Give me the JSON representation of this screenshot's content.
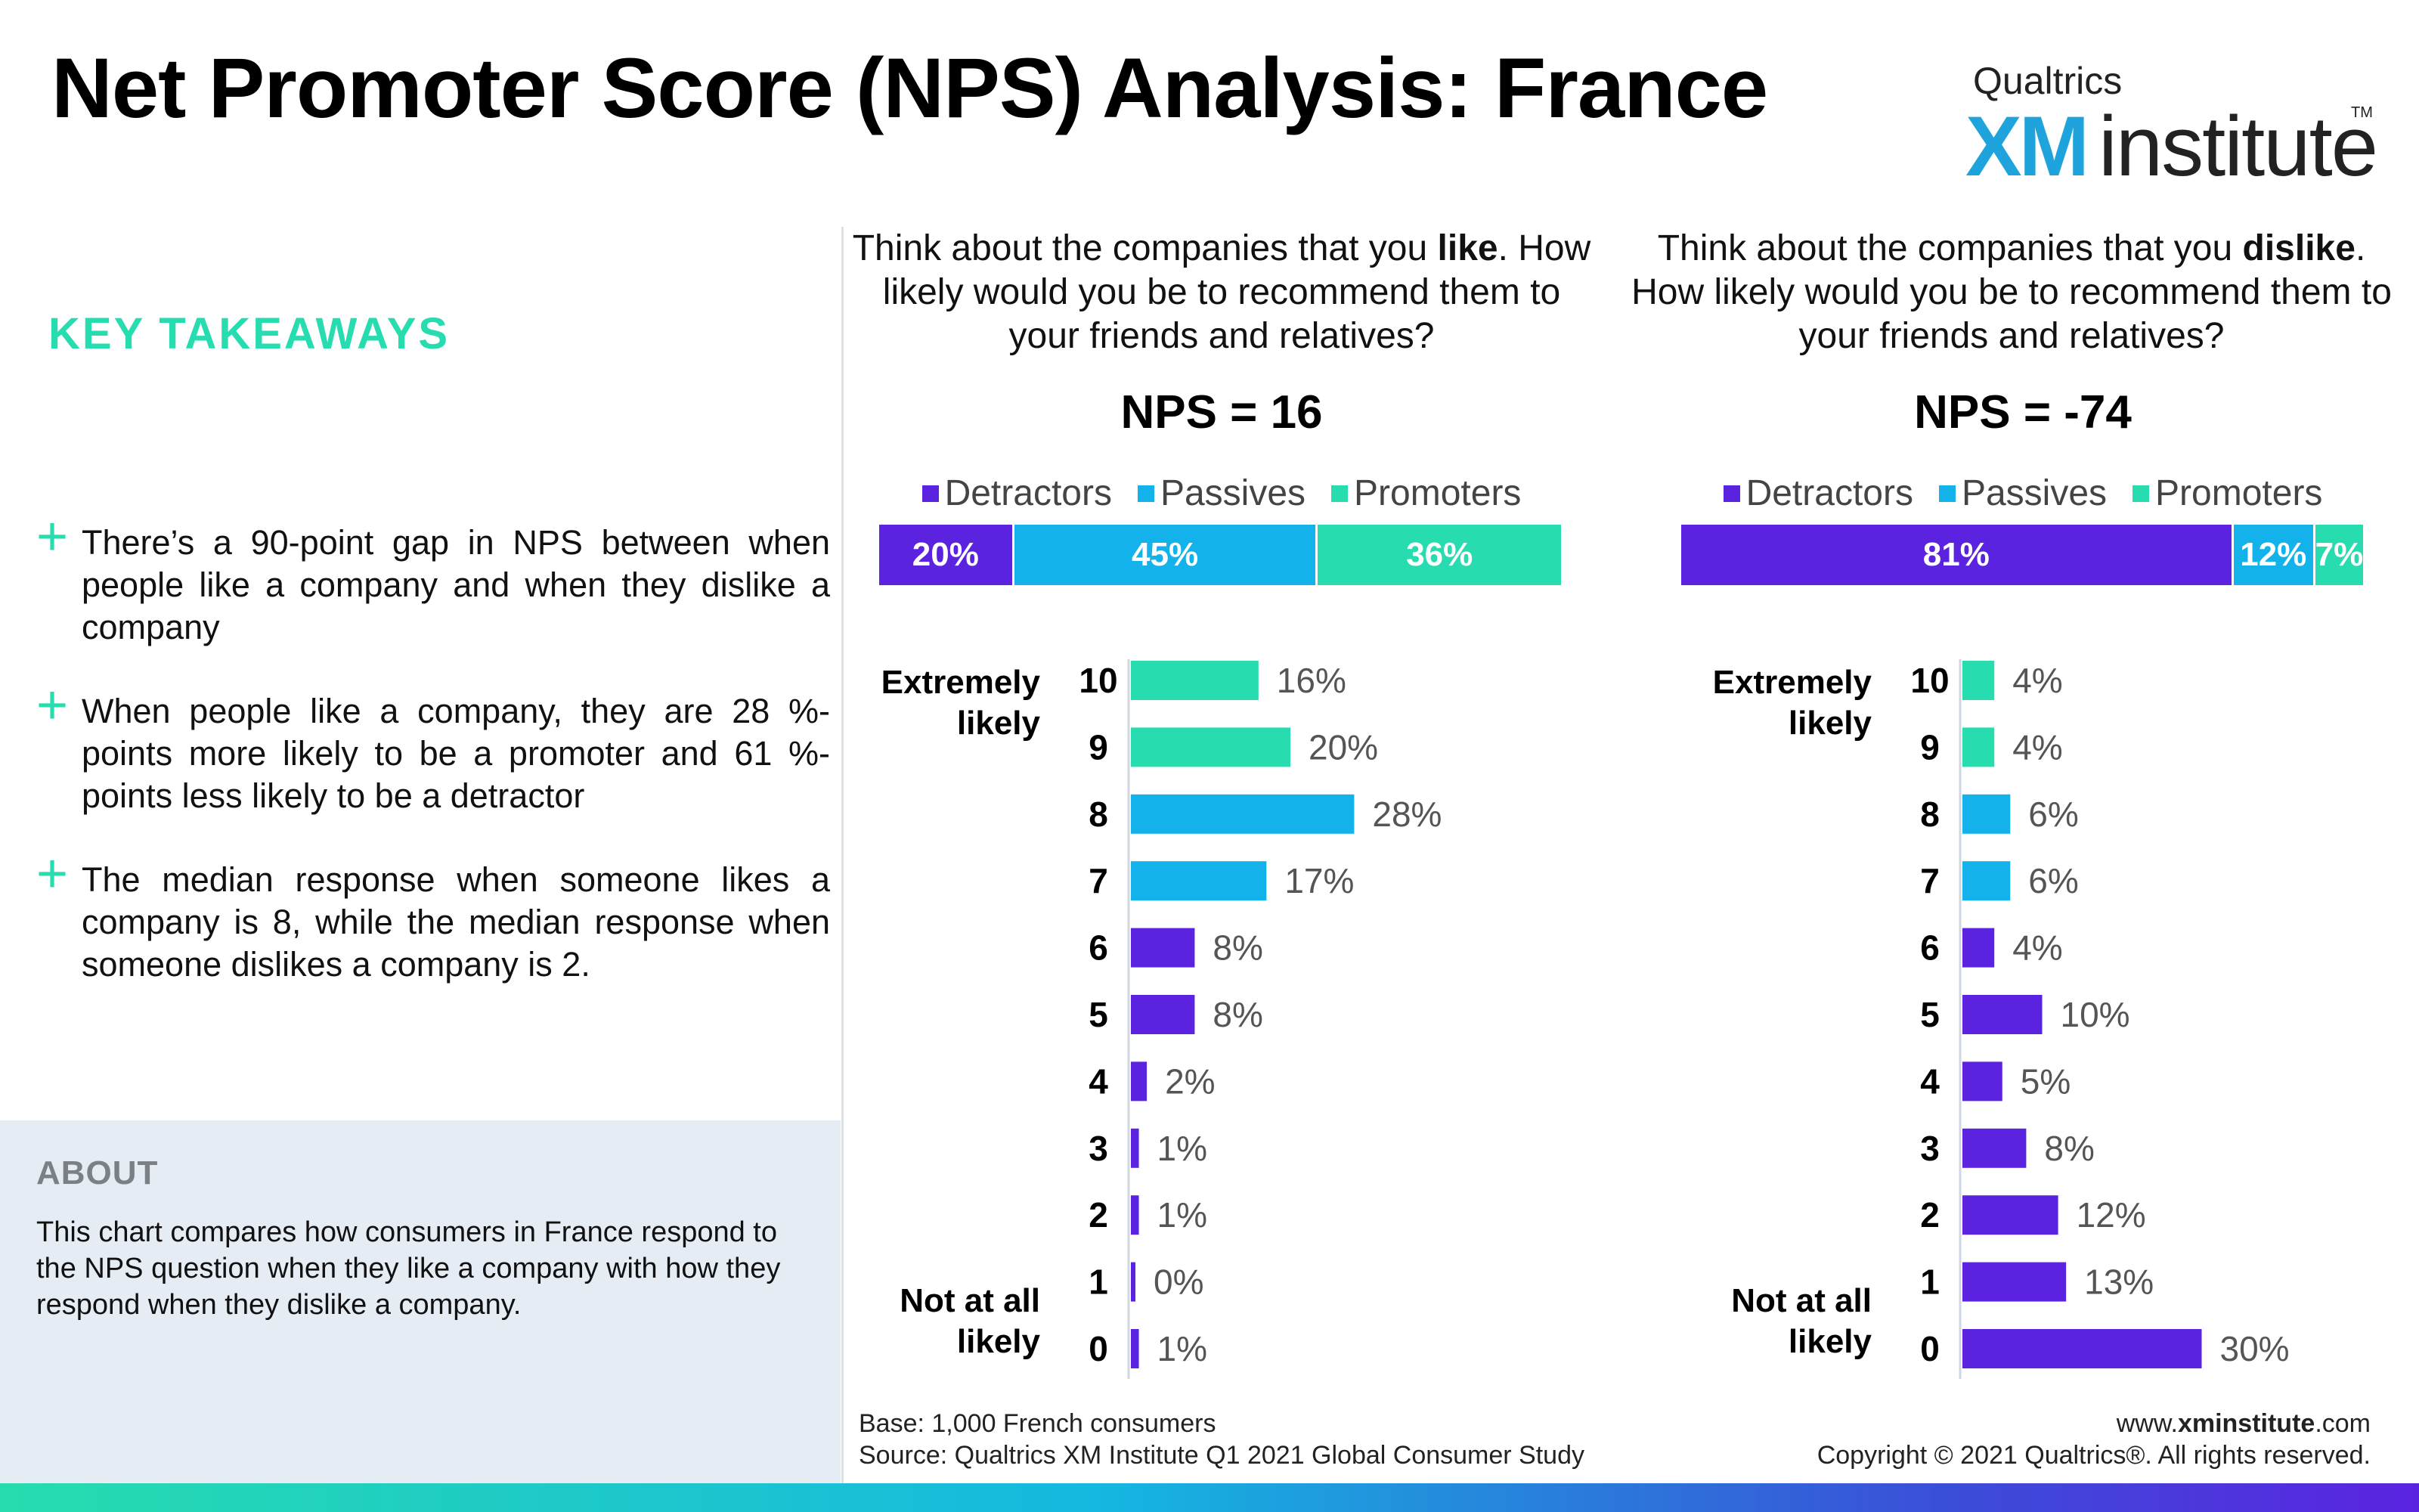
{
  "title": "Net Promoter Score (NPS) Analysis: France",
  "logo": {
    "top": "Qualtrics",
    "xm": "XM",
    "institute": "institute",
    "tm": "TM"
  },
  "takeaways": {
    "title": "KEY TAKEAWAYS",
    "items": [
      "There’s a 90-point gap in NPS between when people like a company and when they dislike a company",
      "When people like a company, they are 28 %-points more likely to be a promoter and 61 %-points less likely to be a detractor",
      "The median response when someone likes a company is 8, while the median response when someone dislikes a company is 2."
    ]
  },
  "about": {
    "title": "ABOUT",
    "text": "This chart compares how consumers in France respond to the NPS question when they like a company with how they respond when they dislike a company."
  },
  "legend": {
    "detractors": "Detractors",
    "passives": "Passives",
    "promoters": "Promoters"
  },
  "anchors": {
    "top": [
      "Extremely",
      "likely"
    ],
    "bottom": [
      "Not at all",
      "likely"
    ]
  },
  "colors": {
    "detractors": "#5b23e0",
    "passives": "#14b2ea",
    "promoters": "#27dcae",
    "accent": "#27dcae"
  },
  "footer": {
    "base": "Base: 1,000 French consumers",
    "source": "Source: Qualtrics XM Institute Q1 2021 Global Consumer Study",
    "url_prefix": "www.",
    "url_bold": "xminstitute",
    "url_suffix": ".com",
    "copyright": "Copyright © 2021 Qualtrics®. All rights reserved."
  },
  "chart_data": [
    {
      "type": "bar",
      "question_prefix": "Think about the companies that you ",
      "question_bold": "like",
      "question_suffix": ". How likely would you be to recommend them to your friends and relatives?",
      "nps_label": "NPS = 16",
      "stacked": [
        {
          "name": "Detractors",
          "value": 20,
          "label": "20%"
        },
        {
          "name": "Passives",
          "value": 45,
          "label": "45%"
        },
        {
          "name": "Promoters",
          "value": 36,
          "label": "36%"
        }
      ],
      "categories": [
        "10",
        "9",
        "8",
        "7",
        "6",
        "5",
        "4",
        "3",
        "2",
        "1",
        "0"
      ],
      "values": [
        16,
        20,
        28,
        17,
        8,
        8,
        2,
        1,
        1,
        0,
        1
      ],
      "labels": [
        "16%",
        "20%",
        "28%",
        "17%",
        "8%",
        "8%",
        "2%",
        "1%",
        "1%",
        "0%",
        "1%"
      ],
      "groups": [
        "promoters",
        "promoters",
        "passives",
        "passives",
        "detractors",
        "detractors",
        "detractors",
        "detractors",
        "detractors",
        "detractors",
        "detractors"
      ]
    },
    {
      "type": "bar",
      "question_prefix": "Think about the companies that you ",
      "question_bold": "dislike",
      "question_suffix": ". How likely would you be to recommend them to your friends and relatives?",
      "nps_label": "NPS = -74",
      "stacked": [
        {
          "name": "Detractors",
          "value": 81,
          "label": "81%"
        },
        {
          "name": "Passives",
          "value": 12,
          "label": "12%"
        },
        {
          "name": "Promoters",
          "value": 7,
          "label": "7%"
        }
      ],
      "categories": [
        "10",
        "9",
        "8",
        "7",
        "6",
        "5",
        "4",
        "3",
        "2",
        "1",
        "0"
      ],
      "values": [
        4,
        4,
        6,
        6,
        4,
        10,
        5,
        8,
        12,
        13,
        30
      ],
      "labels": [
        "4%",
        "4%",
        "6%",
        "6%",
        "4%",
        "10%",
        "5%",
        "8%",
        "12%",
        "13%",
        "30%"
      ],
      "groups": [
        "promoters",
        "promoters",
        "passives",
        "passives",
        "detractors",
        "detractors",
        "detractors",
        "detractors",
        "detractors",
        "detractors",
        "detractors"
      ]
    }
  ]
}
